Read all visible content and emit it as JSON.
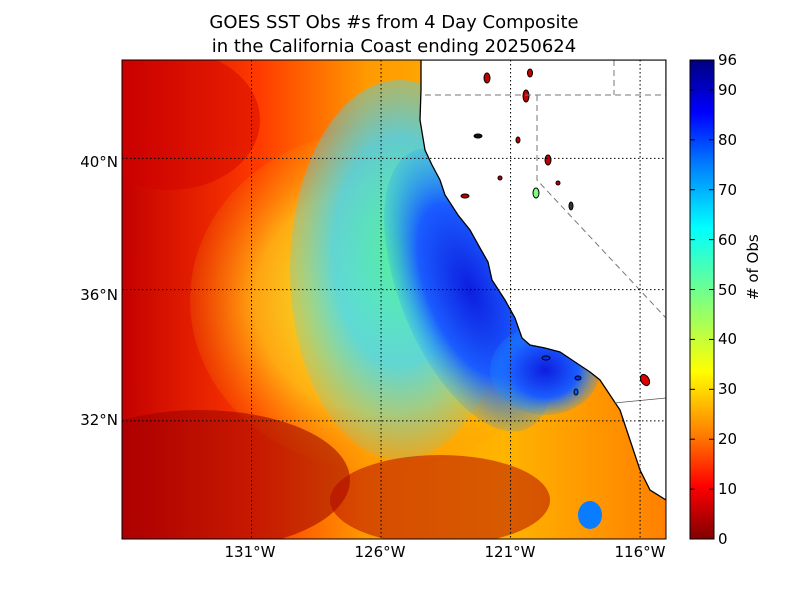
{
  "title": {
    "line1": "GOES SST Obs #s from 4 Day Composite",
    "line2": " in the California Coast ending 20250624"
  },
  "map": {
    "lon_labels": [
      "131°W",
      "126°W",
      "121°W",
      "116°W"
    ],
    "lat_labels": [
      "40°N",
      "36°N",
      "32°N"
    ],
    "lon_values": [
      -131,
      -126,
      -121,
      -116
    ],
    "lat_values": [
      40,
      36,
      32
    ],
    "extent": {
      "lon_min": -136,
      "lon_max": -115,
      "lat_min": 28.4,
      "lat_max": 43
    },
    "ocean_colormap": "jet",
    "land_color": "#ffffff",
    "coastline_color": "#000000",
    "gridline_style": "dotted"
  },
  "colorbar": {
    "label": "# of Obs",
    "min": 0,
    "max": 96,
    "ticks": [
      "0",
      "10",
      "20",
      "30",
      "40",
      "50",
      "60",
      "70",
      "80",
      "90",
      "96"
    ],
    "tick_values": [
      0,
      10,
      20,
      30,
      40,
      50,
      60,
      70,
      80,
      90,
      96
    ],
    "colormap": "jet"
  }
}
